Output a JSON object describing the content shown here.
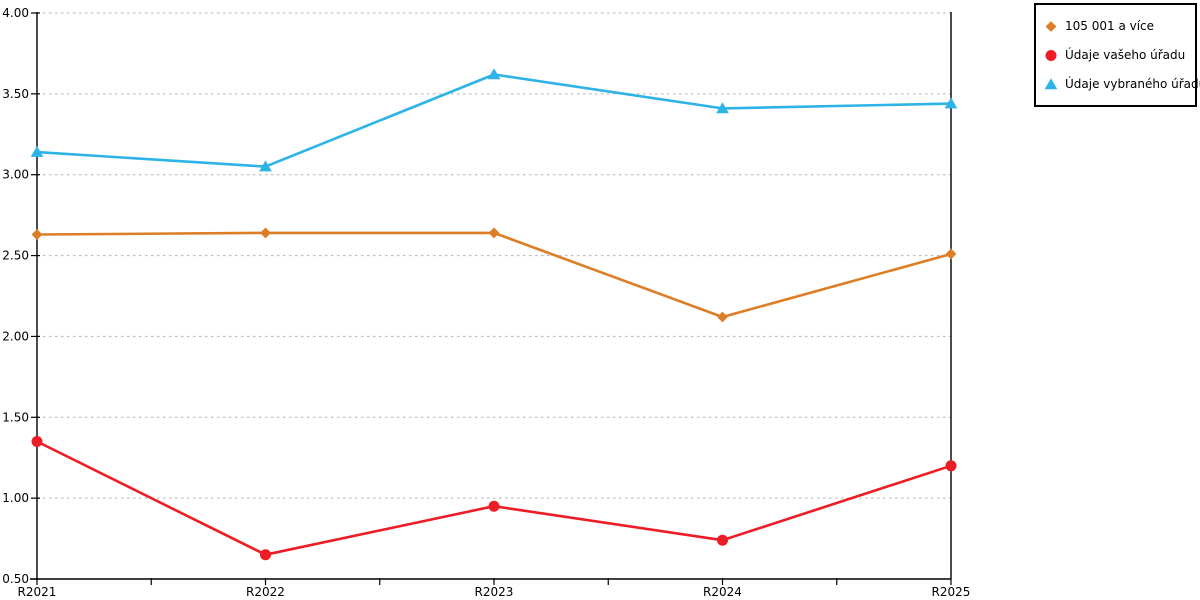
{
  "chart_data": {
    "type": "line",
    "categories": [
      "R2021",
      "R2022",
      "R2023",
      "R2024",
      "R2025"
    ],
    "series": [
      {
        "name": "105 001 a více",
        "color": "#dd7e27",
        "marker": "diamond",
        "values": [
          2.63,
          2.64,
          2.64,
          2.12,
          2.51
        ]
      },
      {
        "name": "Údaje vašeho úřadu",
        "color": "#ee1c25",
        "marker": "circle",
        "values": [
          1.35,
          0.65,
          0.95,
          0.74,
          1.2
        ]
      },
      {
        "name": "Údaje vybraného úřadu",
        "color": "#2db3e8",
        "marker": "triangle",
        "values": [
          3.14,
          3.05,
          3.62,
          3.41,
          3.44
        ]
      }
    ],
    "ylim": [
      0.5,
      4.0
    ],
    "ytick_step": 0.5,
    "ytick_labels": [
      "0.50",
      "1.00",
      "1.50",
      "2.00",
      "2.50",
      "3.00",
      "3.50",
      "4.00"
    ],
    "grid": "horizontal-dotted",
    "legend_position": "outside-top-right",
    "axis_color": "#000000",
    "gridline_color": "#b0b0b0",
    "background": "#ffffff"
  }
}
